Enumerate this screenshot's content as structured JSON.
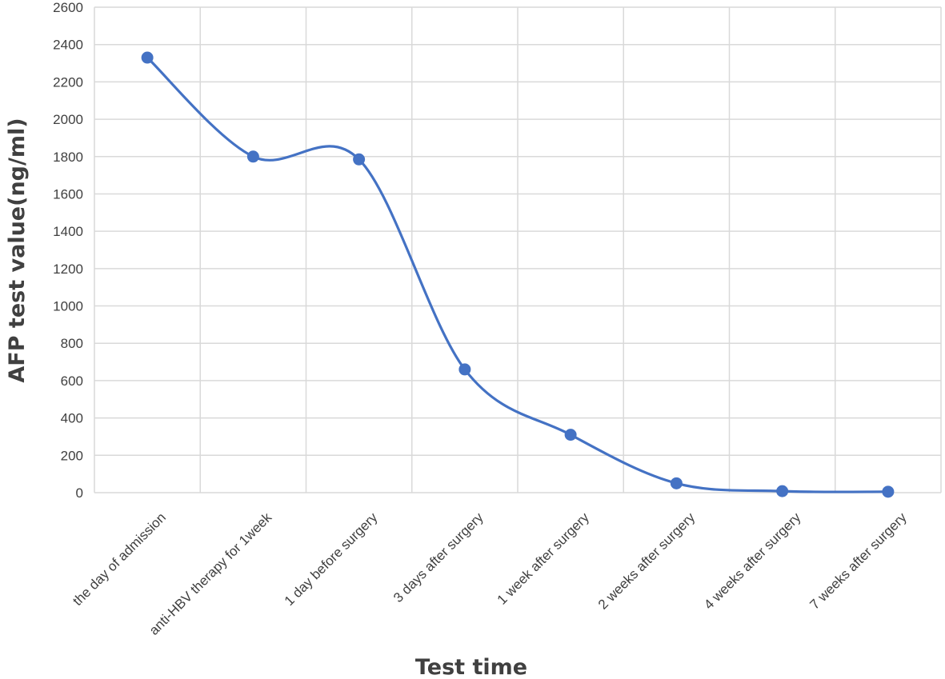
{
  "chart_data": {
    "type": "line",
    "title": "",
    "xlabel": "Test time",
    "ylabel": "AFP test value(ng/ml)",
    "ylim": [
      0,
      2600
    ],
    "yticks": [
      0,
      200,
      400,
      600,
      800,
      1000,
      1200,
      1400,
      1600,
      1800,
      2000,
      2200,
      2400,
      2600
    ],
    "categories": [
      "the day of admission",
      "anti-HBV therapy for 1week",
      "1 day before surgery",
      "3 days after surgery",
      "1 week after surgery",
      "2 weeks after surgery",
      "4 weeks after surgery",
      "7 weeks after surgery"
    ],
    "series": [
      {
        "values": [
          2330,
          1800,
          1785,
          660,
          310,
          50,
          8,
          5
        ]
      }
    ],
    "smooth": true,
    "grid": true,
    "legend": "none",
    "colors": {
      "line": "#4472C4",
      "marker": "#4472C4",
      "grid": "#d9d9d9",
      "text": "#404040"
    }
  }
}
